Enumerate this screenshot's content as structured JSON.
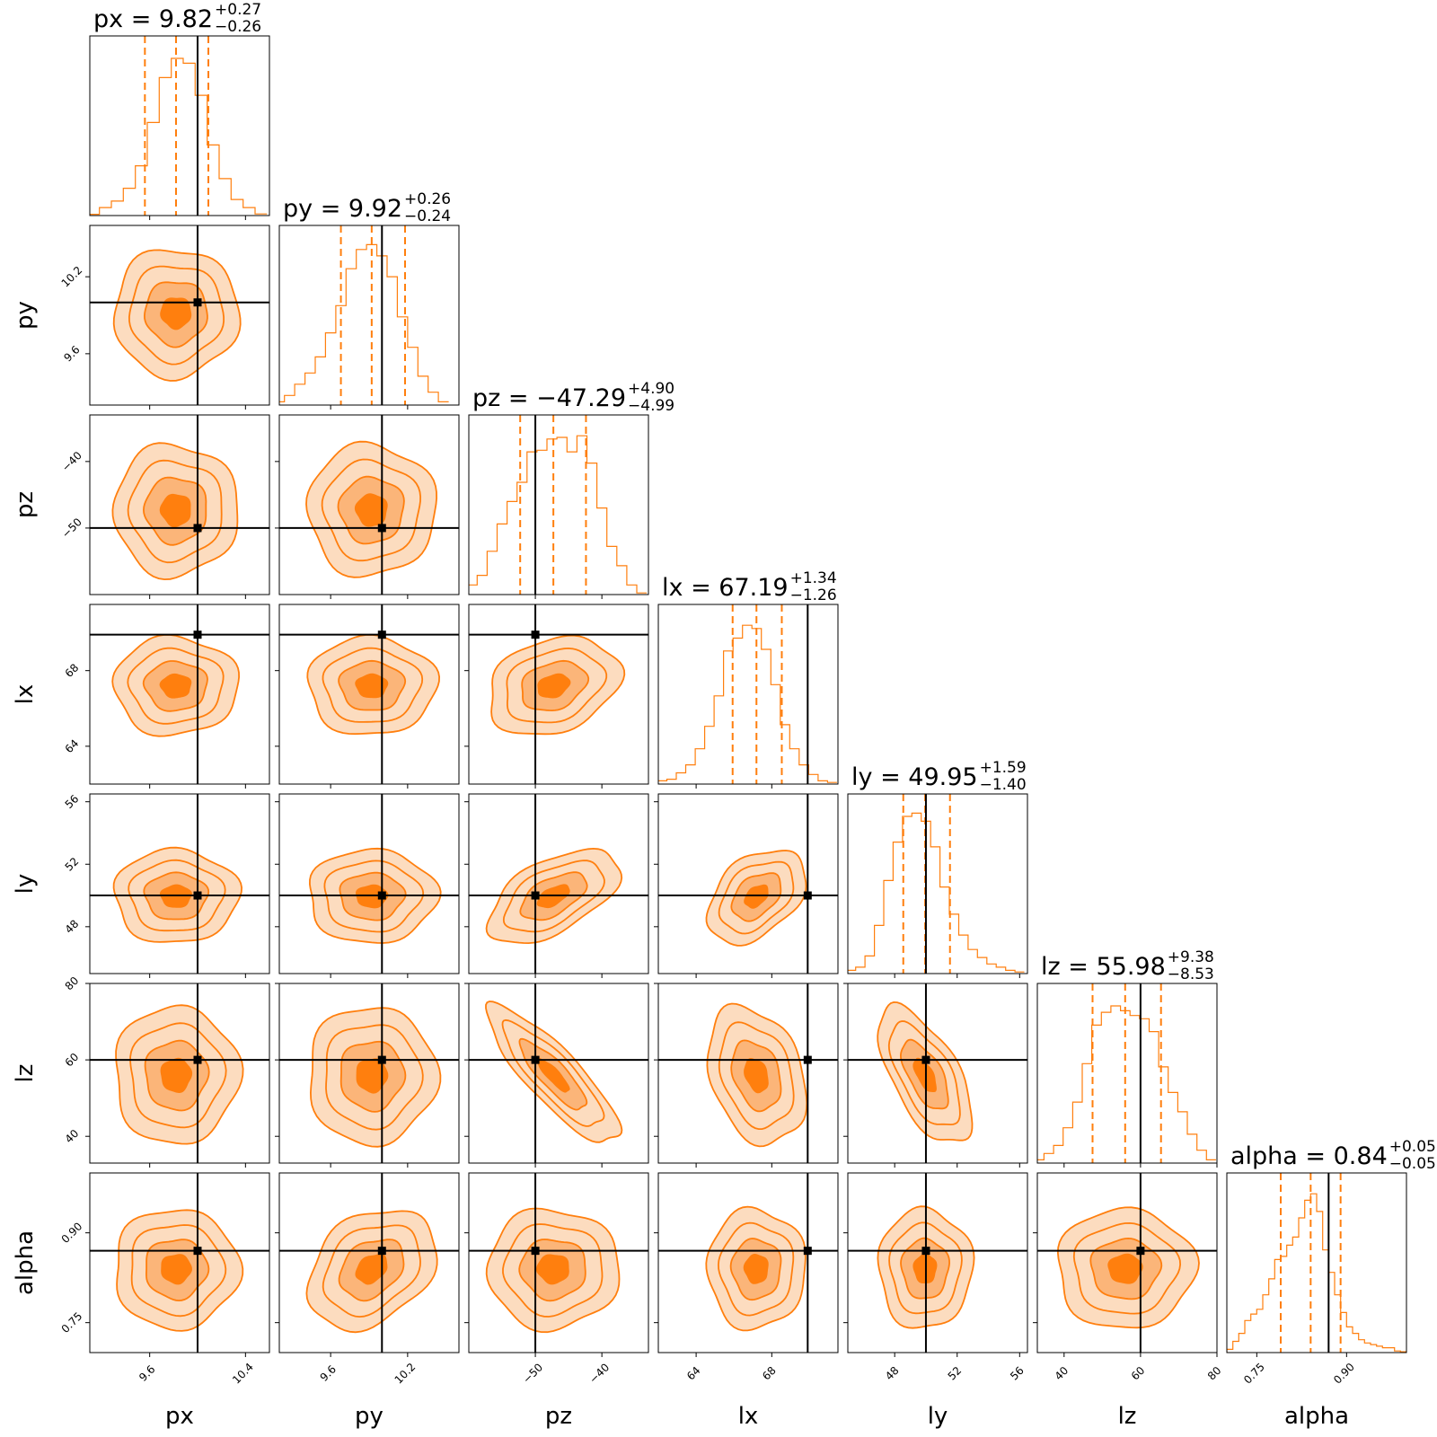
{
  "colors": {
    "accent": "#ff7f0e",
    "truth": "#000000",
    "fill_levels": [
      "#fcdcbf",
      "#fbb579",
      "#ff7f0e"
    ]
  },
  "chart_data": {
    "type": "corner",
    "parameters": [
      {
        "name": "px",
        "axis_label": "px",
        "title": "px = 9.82",
        "plus": "+0.27",
        "minus": "−0.26",
        "range": [
          9.1,
          10.6
        ],
        "truth": 10.0,
        "median": 9.82,
        "q_low": 9.56,
        "q_high": 10.09,
        "sigma": 0.26,
        "ticks": [
          9.6,
          10.4
        ],
        "tick_labels": [
          "9.6",
          "10.4"
        ],
        "hist_x": [
          9.13,
          9.23,
          9.33,
          9.43,
          9.53,
          9.63,
          9.73,
          9.83,
          9.93,
          10.03,
          10.13,
          10.23,
          10.33,
          10.43,
          10.53
        ],
        "hist_y": [
          0.008,
          0.05,
          0.09,
          0.17,
          0.31,
          0.58,
          0.86,
          0.98,
          0.95,
          0.75,
          0.44,
          0.23,
          0.1,
          0.05,
          0.01
        ]
      },
      {
        "name": "py",
        "axis_label": "py",
        "title": "py = 9.92",
        "plus": "+0.26",
        "minus": "−0.24",
        "range": [
          9.2,
          10.6
        ],
        "truth": 10.0,
        "median": 9.92,
        "q_low": 9.68,
        "q_high": 10.18,
        "sigma": 0.25,
        "ticks": [
          9.6,
          10.2
        ],
        "tick_labels": [
          "9.6",
          "10.2"
        ],
        "hist_x": [
          9.2,
          9.28,
          9.36,
          9.44,
          9.52,
          9.6,
          9.68,
          9.76,
          9.84,
          9.92,
          10.0,
          10.08,
          10.16,
          10.24,
          10.32,
          10.4,
          10.48
        ],
        "hist_y": [
          0.02,
          0.06,
          0.13,
          0.2,
          0.3,
          0.45,
          0.62,
          0.85,
          0.97,
          1.0,
          0.93,
          0.8,
          0.55,
          0.36,
          0.18,
          0.08,
          0.02
        ]
      },
      {
        "name": "pz",
        "axis_label": "pz",
        "title": "pz = −47.29",
        "plus": "+4.90",
        "minus": "−4.99",
        "range": [
          -60,
          -33
        ],
        "truth": -50.0,
        "median": -47.29,
        "q_low": -52.28,
        "q_high": -42.39,
        "sigma": 4.95,
        "ticks": [
          -50,
          -40
        ],
        "tick_labels": [
          "−50",
          "−40"
        ],
        "hist_x": [
          -59.5,
          -58,
          -56.5,
          -55,
          -53.5,
          -52,
          -50.5,
          -49,
          -47.5,
          -46,
          -44.5,
          -43,
          -41.5,
          -40,
          -38.5,
          -37,
          -35.5,
          -34
        ],
        "hist_y": [
          0.06,
          0.12,
          0.27,
          0.44,
          0.58,
          0.7,
          0.89,
          0.9,
          0.97,
          0.98,
          0.89,
          0.99,
          0.82,
          0.54,
          0.3,
          0.18,
          0.06,
          0.01
        ]
      },
      {
        "name": "lx",
        "axis_label": "lx",
        "title": "lx = 67.19",
        "plus": "+1.34",
        "minus": "−1.26",
        "range": [
          62.0,
          71.5
        ],
        "truth": 69.9,
        "median": 67.19,
        "q_low": 65.93,
        "q_high": 68.53,
        "sigma": 1.3,
        "ticks": [
          64,
          68
        ],
        "tick_labels": [
          "64",
          "68"
        ],
        "hist_x": [
          62.2,
          62.7,
          63.2,
          63.7,
          64.2,
          64.7,
          65.2,
          65.7,
          66.2,
          66.7,
          67.2,
          67.7,
          68.2,
          68.7,
          69.2,
          69.7,
          70.2,
          70.7,
          71.2
        ],
        "hist_y": [
          0.02,
          0.03,
          0.07,
          0.12,
          0.22,
          0.36,
          0.55,
          0.83,
          0.91,
          0.99,
          0.97,
          0.84,
          0.62,
          0.37,
          0.22,
          0.12,
          0.06,
          0.02,
          0.01
        ]
      },
      {
        "name": "ly",
        "axis_label": "ly",
        "title": "ly = 49.95",
        "plus": "+1.59",
        "minus": "−1.40",
        "range": [
          45.0,
          56.5
        ],
        "truth": 50.0,
        "median": 49.95,
        "q_low": 48.55,
        "q_high": 51.54,
        "sigma": 1.5,
        "ticks": [
          48,
          52,
          56
        ],
        "tick_labels": [
          "48",
          "52",
          "56"
        ],
        "hist_x": [
          45.2,
          45.8,
          46.4,
          47.0,
          47.6,
          48.2,
          48.8,
          49.4,
          50.0,
          50.6,
          51.2,
          51.8,
          52.4,
          53.0,
          53.6,
          54.2,
          54.8,
          55.4,
          56.0
        ],
        "hist_y": [
          0.02,
          0.04,
          0.11,
          0.3,
          0.58,
          0.82,
          0.98,
          1.0,
          0.95,
          0.79,
          0.54,
          0.37,
          0.24,
          0.15,
          0.1,
          0.06,
          0.04,
          0.02,
          0.01
        ]
      },
      {
        "name": "lz",
        "axis_label": "lz",
        "title": "lz = 55.98",
        "plus": "+9.38",
        "minus": "−8.53",
        "range": [
          33.0,
          80.0
        ],
        "truth": 60.0,
        "median": 55.98,
        "q_low": 47.45,
        "q_high": 65.36,
        "sigma": 9.0,
        "ticks": [
          40,
          60,
          80
        ],
        "tick_labels": [
          "40",
          "60",
          "80"
        ],
        "hist_x": [
          33.5,
          36,
          38.5,
          41,
          43.5,
          46,
          48.5,
          51,
          53.5,
          56,
          58.5,
          61,
          63.5,
          66,
          68.5,
          71,
          73.5,
          76,
          78.5
        ],
        "hist_y": [
          0.02,
          0.06,
          0.11,
          0.22,
          0.38,
          0.62,
          0.86,
          0.94,
          0.98,
          0.95,
          0.92,
          0.9,
          0.82,
          0.6,
          0.44,
          0.32,
          0.18,
          0.08,
          0.02
        ]
      },
      {
        "name": "alpha",
        "axis_label": "alpha",
        "title": "alpha = 0.84",
        "plus": "+0.05",
        "minus": "−0.05",
        "range": [
          0.7,
          1.0
        ],
        "truth": 0.87,
        "median": 0.84,
        "q_low": 0.79,
        "q_high": 0.89,
        "sigma": 0.05,
        "ticks": [
          0.75,
          0.9
        ],
        "tick_labels": [
          "0.75",
          "0.90"
        ],
        "hist_x": [
          0.705,
          0.715,
          0.725,
          0.735,
          0.745,
          0.755,
          0.765,
          0.775,
          0.785,
          0.795,
          0.805,
          0.815,
          0.825,
          0.835,
          0.845,
          0.855,
          0.865,
          0.875,
          0.885,
          0.895,
          0.905,
          0.915,
          0.925,
          0.935,
          0.945,
          0.955,
          0.965,
          0.975,
          0.985,
          0.995
        ],
        "hist_y": [
          0.02,
          0.07,
          0.12,
          0.2,
          0.24,
          0.27,
          0.36,
          0.46,
          0.58,
          0.6,
          0.67,
          0.72,
          0.84,
          0.95,
          0.99,
          0.88,
          0.64,
          0.5,
          0.36,
          0.25,
          0.16,
          0.12,
          0.08,
          0.06,
          0.05,
          0.04,
          0.03,
          0.03,
          0.01,
          0.005
        ]
      }
    ],
    "correlations": {
      "pz|lx": 0.25,
      "pz|ly": 0.55,
      "pz|lz": -0.85,
      "lx|ly": 0.4,
      "lx|lz": -0.28,
      "ly|lz": -0.62,
      "py|alpha": 0.3
    },
    "contour_levels_sigma": [
      0.5,
      1.0,
      1.5,
      2.0
    ]
  }
}
